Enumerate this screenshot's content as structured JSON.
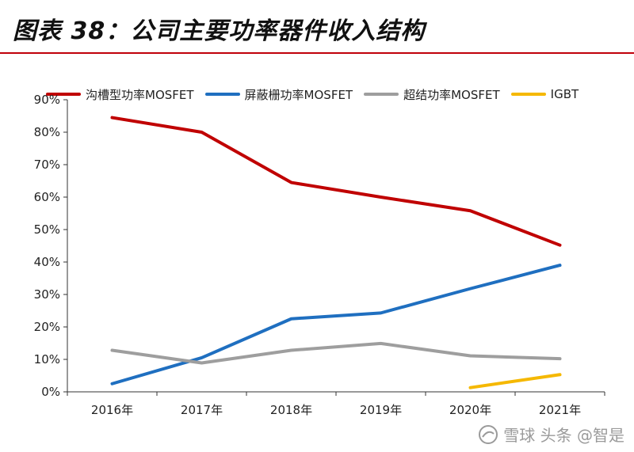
{
  "header": {
    "title": "图表 38：公司主要功率器件收入结构"
  },
  "chart_data": {
    "type": "line",
    "categories": [
      "2016年",
      "2017年",
      "2018年",
      "2019年",
      "2020年",
      "2021年"
    ],
    "ylim": [
      0,
      90
    ],
    "yticks": [
      "0%",
      "10%",
      "20%",
      "30%",
      "40%",
      "50%",
      "60%",
      "70%",
      "80%",
      "90%"
    ],
    "legend_position": "top",
    "grid": false,
    "series": [
      {
        "name": "沟槽型功率MOSFET",
        "color": "#c00000",
        "values": [
          84.5,
          80,
          64.5,
          60,
          55.8,
          45.2
        ]
      },
      {
        "name": "屏蔽栅功率MOSFET",
        "color": "#1f6fc0",
        "values": [
          2.5,
          10.5,
          22.5,
          24.3,
          31.8,
          39
        ]
      },
      {
        "name": "超结功率MOSFET",
        "color": "#9e9e9e",
        "values": [
          12.8,
          8.9,
          12.8,
          14.9,
          11.1,
          10.2
        ]
      },
      {
        "name": "IGBT",
        "color": "#f5b800",
        "values": [
          null,
          null,
          null,
          null,
          1.3,
          5.3
        ]
      }
    ]
  },
  "watermark": {
    "text": "雪球 头条 @智是",
    "icon": "snowball-icon"
  }
}
